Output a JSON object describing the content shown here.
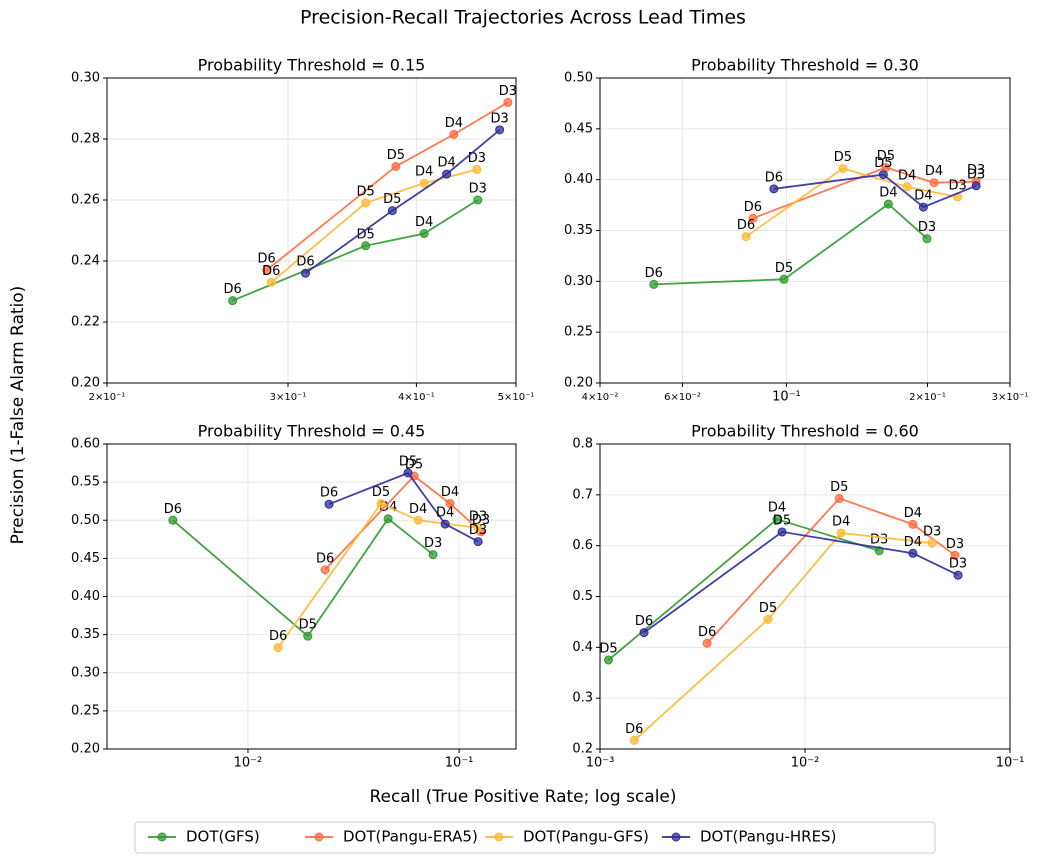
{
  "title": "Precision-Recall Trajectories Across Lead Times",
  "xlabel": "Recall (True Positive Rate; log scale)",
  "ylabel": "Precision (1-False Alarm Ratio)",
  "chart_data": [
    {
      "type": "line",
      "title": "Probability Threshold = 0.15",
      "xscale": "log",
      "grid": true,
      "xlim": [
        0.2,
        0.5
      ],
      "ylim": [
        0.2,
        0.3
      ],
      "xticks": [
        {
          "value": 0.2,
          "label": "2×10⁻¹"
        },
        {
          "value": 0.3,
          "label": "3×10⁻¹"
        },
        {
          "value": 0.4,
          "label": "4×10⁻¹"
        },
        {
          "value": 0.5,
          "label": "5×10⁻¹"
        }
      ],
      "yticks": [
        {
          "value": 0.2,
          "label": "0.20"
        },
        0.22,
        0.24,
        0.26,
        0.28,
        {
          "value": 0.3,
          "label": "0.30"
        }
      ],
      "point_labels": [
        "D3",
        "D4",
        "D5",
        "D6"
      ],
      "series": [
        {
          "name": "DOT(GFS)",
          "color": "#2e9a2e",
          "x": [
            0.459,
            0.407,
            0.357,
            0.265
          ],
          "values": [
            0.26,
            0.249,
            0.245,
            0.227
          ]
        },
        {
          "name": "DOT(Pangu-ERA5)",
          "color": "#ff6b3d",
          "x": [
            0.491,
            0.435,
            0.382,
            0.286
          ],
          "values": [
            0.292,
            0.2815,
            0.271,
            0.237
          ]
        },
        {
          "name": "DOT(Pangu-GFS)",
          "color": "#ffb833",
          "x": [
            0.458,
            0.407,
            0.357,
            0.289
          ],
          "values": [
            0.27,
            0.2655,
            0.259,
            0.233
          ]
        },
        {
          "name": "DOT(Pangu-HRES)",
          "color": "#2c2c9c",
          "x": [
            0.482,
            0.428,
            0.379,
            0.312
          ],
          "values": [
            0.283,
            0.2685,
            0.2565,
            0.236
          ]
        }
      ]
    },
    {
      "type": "line",
      "title": "Probability Threshold = 0.30",
      "xscale": "log",
      "grid": true,
      "xlim": [
        0.04,
        0.3
      ],
      "ylim": [
        0.2,
        0.5
      ],
      "xticks": [
        {
          "value": 0.04,
          "label": "4×10⁻²"
        },
        {
          "value": 0.06,
          "label": "6×10⁻²"
        },
        {
          "value": 0.1,
          "label": "10⁻¹"
        },
        {
          "value": 0.2,
          "label": "2×10⁻¹"
        },
        {
          "value": 0.3,
          "label": "3×10⁻¹"
        }
      ],
      "yticks": [
        {
          "value": 0.2,
          "label": "0.20"
        },
        0.25,
        {
          "value": 0.3,
          "label": "0.30"
        },
        0.35,
        {
          "value": 0.4,
          "label": "0.40"
        },
        0.45,
        {
          "value": 0.5,
          "label": "0.50"
        }
      ],
      "point_labels": [
        "D3",
        "D4",
        "D5",
        "D6"
      ],
      "series": [
        {
          "name": "DOT(GFS)",
          "color": "#2e9a2e",
          "x": [
            0.1995,
            0.165,
            0.0988,
            0.0521
          ],
          "values": [
            0.342,
            0.376,
            0.302,
            0.297
          ]
        },
        {
          "name": "DOT(Pangu-ERA5)",
          "color": "#ff6b3d",
          "x": [
            0.254,
            0.2065,
            0.163,
            0.0848
          ],
          "values": [
            0.398,
            0.397,
            0.412,
            0.362
          ]
        },
        {
          "name": "DOT(Pangu-GFS)",
          "color": "#ffb833",
          "x": [
            0.232,
            0.181,
            0.132,
            0.082
          ],
          "values": [
            0.383,
            0.393,
            0.411,
            0.344
          ]
        },
        {
          "name": "DOT(Pangu-HRES)",
          "color": "#2c2c9c",
          "x": [
            0.254,
            0.196,
            0.161,
            0.094
          ],
          "values": [
            0.394,
            0.373,
            0.405,
            0.391
          ]
        }
      ]
    },
    {
      "type": "line",
      "title": "Probability Threshold = 0.45",
      "xscale": "log",
      "grid": true,
      "xlim": [
        0.00215,
        0.186
      ],
      "ylim": [
        0.2,
        0.6
      ],
      "xticks": [
        {
          "value": 0.01,
          "label": "10⁻²"
        },
        {
          "value": 0.1,
          "label": "10⁻¹"
        }
      ],
      "yticks": [
        {
          "value": 0.2,
          "label": "0.20"
        },
        0.25,
        {
          "value": 0.3,
          "label": "0.30"
        },
        0.35,
        {
          "value": 0.4,
          "label": "0.40"
        },
        0.45,
        {
          "value": 0.5,
          "label": "0.50"
        },
        0.55,
        {
          "value": 0.6,
          "label": "0.60"
        }
      ],
      "point_labels": [
        "D3",
        "D4",
        "D5",
        "D6"
      ],
      "series": [
        {
          "name": "DOT(GFS)",
          "color": "#2e9a2e",
          "x": [
            0.0753,
            0.0461,
            0.0192,
            0.00441
          ],
          "values": [
            0.455,
            0.502,
            0.348,
            0.5
          ]
        },
        {
          "name": "DOT(Pangu-ERA5)",
          "color": "#ff6b3d",
          "x": [
            0.127,
            0.0906,
            0.0612,
            0.0232
          ],
          "values": [
            0.485,
            0.522,
            0.558,
            0.435
          ]
        },
        {
          "name": "DOT(Pangu-GFS)",
          "color": "#ffb833",
          "x": [
            0.123,
            0.064,
            0.0427,
            0.0139
          ],
          "values": [
            0.49,
            0.5,
            0.522,
            0.333
          ]
        },
        {
          "name": "DOT(Pangu-HRES)",
          "color": "#2c2c9c",
          "x": [
            0.123,
            0.0859,
            0.0573,
            0.0242
          ],
          "values": [
            0.472,
            0.495,
            0.562,
            0.521
          ]
        }
      ]
    },
    {
      "type": "line",
      "title": "Probability Threshold = 0.60",
      "xscale": "log",
      "grid": true,
      "xlim": [
        0.001,
        0.1
      ],
      "ylim": [
        0.2,
        0.8
      ],
      "xticks": [
        {
          "value": 0.001,
          "label": "10⁻³"
        },
        {
          "value": 0.01,
          "label": "10⁻²"
        },
        {
          "value": 0.1,
          "label": "10⁻¹"
        }
      ],
      "yticks": [
        0.2,
        0.3,
        0.4,
        0.5,
        0.6,
        0.7,
        0.8
      ],
      "point_labels": [
        "D3",
        "D4",
        "D5",
        "D6"
      ],
      "series": [
        {
          "name": "DOT(GFS)",
          "color": "#2e9a2e",
          "x": [
            0.023,
            0.0073,
            0.0011,
            null
          ],
          "values": [
            0.59,
            0.652,
            0.375,
            null
          ]
        },
        {
          "name": "DOT(Pangu-ERA5)",
          "color": "#ff6b3d",
          "x": [
            0.0539,
            0.0336,
            0.0147,
            0.00333
          ],
          "values": [
            0.581,
            0.642,
            0.693,
            0.408
          ]
        },
        {
          "name": "DOT(Pangu-GFS)",
          "color": "#ffb833",
          "x": [
            0.0417,
            0.015,
            0.0066,
            0.00147
          ],
          "values": [
            0.605,
            0.625,
            0.455,
            0.217
          ]
        },
        {
          "name": "DOT(Pangu-HRES)",
          "color": "#2c2c9c",
          "x": [
            0.0558,
            0.0336,
            0.00773,
            0.00164
          ],
          "values": [
            0.542,
            0.585,
            0.627,
            0.429
          ]
        }
      ]
    }
  ]
}
